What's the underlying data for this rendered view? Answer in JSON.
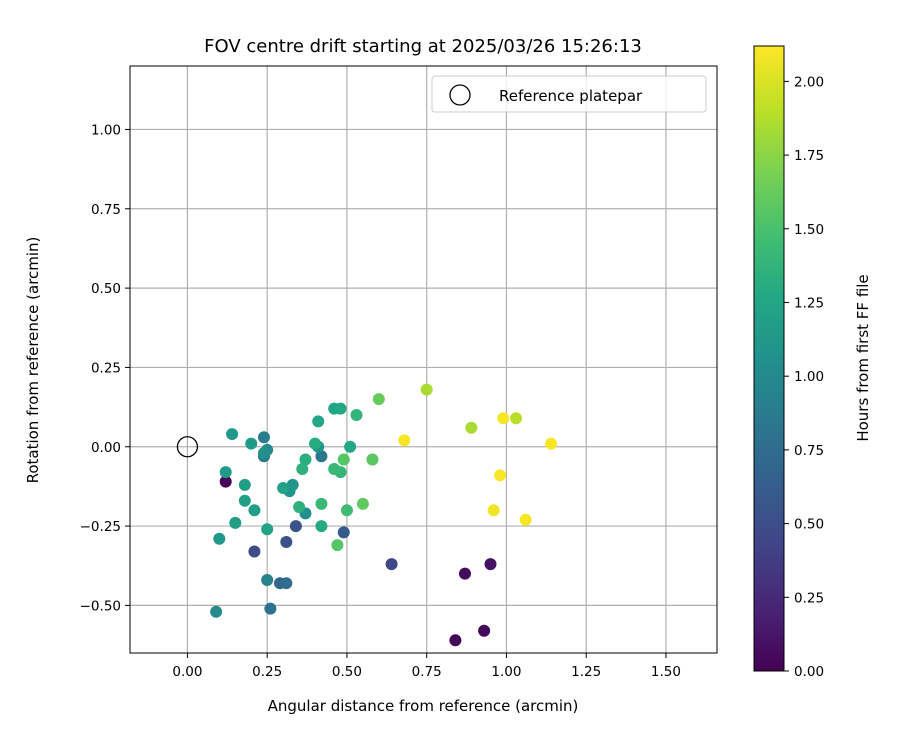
{
  "chart_data": {
    "type": "scatter",
    "title": "FOV centre drift starting at 2025/03/26 15:26:13",
    "xlabel": "Angular distance from reference (arcmin)",
    "ylabel": "Rotation from reference (arcmin)",
    "xlim": [
      -0.18,
      1.66
    ],
    "ylim": [
      -0.65,
      1.2
    ],
    "xticks": [
      0.0,
      0.25,
      0.5,
      0.75,
      1.0,
      1.25,
      1.5
    ],
    "xtick_labels": [
      "0.00",
      "0.25",
      "0.50",
      "0.75",
      "1.00",
      "1.25",
      "1.50"
    ],
    "yticks": [
      -0.5,
      -0.25,
      0.0,
      0.25,
      0.5,
      0.75,
      1.0
    ],
    "ytick_labels": [
      "−0.50",
      "−0.25",
      "0.00",
      "0.25",
      "0.50",
      "0.75",
      "1.00"
    ],
    "grid": true,
    "legend": {
      "position": "top-right",
      "label": "Reference platepar"
    },
    "reference_point": {
      "x": 0.0,
      "y": 0.0
    },
    "colorbar": {
      "label": "Hours from first FF file",
      "colormap": "viridis",
      "range": [
        0.0,
        2.12
      ],
      "ticks": [
        0.0,
        0.25,
        0.5,
        0.75,
        1.0,
        1.25,
        1.5,
        1.75,
        2.0
      ],
      "tick_labels": [
        "0.00",
        "0.25",
        "0.50",
        "0.75",
        "1.00",
        "1.25",
        "1.50",
        "1.75",
        "2.00"
      ]
    },
    "points": [
      {
        "x": 0.12,
        "y": -0.11,
        "c": 0.03
      },
      {
        "x": 0.84,
        "y": -0.61,
        "c": 0.02
      },
      {
        "x": 0.93,
        "y": -0.58,
        "c": 0.05
      },
      {
        "x": 0.87,
        "y": -0.4,
        "c": 0.07
      },
      {
        "x": 0.95,
        "y": -0.37,
        "c": 0.1
      },
      {
        "x": 0.64,
        "y": -0.37,
        "c": 0.45
      },
      {
        "x": 0.21,
        "y": -0.33,
        "c": 0.5
      },
      {
        "x": 0.31,
        "y": -0.3,
        "c": 0.52
      },
      {
        "x": 0.34,
        "y": -0.25,
        "c": 0.55
      },
      {
        "x": 0.49,
        "y": -0.27,
        "c": 0.6
      },
      {
        "x": 0.29,
        "y": -0.43,
        "c": 0.7
      },
      {
        "x": 0.31,
        "y": -0.43,
        "c": 0.75
      },
      {
        "x": 0.26,
        "y": -0.51,
        "c": 0.8
      },
      {
        "x": 0.24,
        "y": -0.03,
        "c": 0.85
      },
      {
        "x": 0.42,
        "y": -0.03,
        "c": 0.85
      },
      {
        "x": 0.24,
        "y": 0.03,
        "c": 0.9
      },
      {
        "x": 0.25,
        "y": -0.42,
        "c": 0.95
      },
      {
        "x": 0.25,
        "y": -0.01,
        "c": 1.0
      },
      {
        "x": 0.09,
        "y": -0.52,
        "c": 1.0
      },
      {
        "x": 0.24,
        "y": -0.02,
        "c": 1.05
      },
      {
        "x": 0.37,
        "y": -0.21,
        "c": 1.05
      },
      {
        "x": 0.32,
        "y": -0.14,
        "c": 1.1
      },
      {
        "x": 0.33,
        "y": -0.12,
        "c": 1.1
      },
      {
        "x": 0.41,
        "y": 0.0,
        "c": 1.1
      },
      {
        "x": 0.1,
        "y": -0.29,
        "c": 1.12
      },
      {
        "x": 0.14,
        "y": 0.04,
        "c": 1.12
      },
      {
        "x": 0.12,
        "y": -0.08,
        "c": 1.15
      },
      {
        "x": 0.2,
        "y": 0.01,
        "c": 1.15
      },
      {
        "x": 0.15,
        "y": -0.24,
        "c": 1.18
      },
      {
        "x": 0.18,
        "y": -0.12,
        "c": 1.18
      },
      {
        "x": 0.18,
        "y": -0.17,
        "c": 1.2
      },
      {
        "x": 0.21,
        "y": -0.2,
        "c": 1.2
      },
      {
        "x": 0.25,
        "y": -0.26,
        "c": 1.22
      },
      {
        "x": 0.3,
        "y": -0.13,
        "c": 1.22
      },
      {
        "x": 0.41,
        "y": 0.08,
        "c": 1.25
      },
      {
        "x": 0.46,
        "y": 0.12,
        "c": 1.25
      },
      {
        "x": 0.48,
        "y": 0.12,
        "c": 1.27
      },
      {
        "x": 0.51,
        "y": 0.0,
        "c": 1.27
      },
      {
        "x": 0.4,
        "y": 0.01,
        "c": 1.3
      },
      {
        "x": 0.42,
        "y": -0.25,
        "c": 1.3
      },
      {
        "x": 0.37,
        "y": -0.04,
        "c": 1.32
      },
      {
        "x": 0.36,
        "y": -0.07,
        "c": 1.35
      },
      {
        "x": 0.35,
        "y": -0.19,
        "c": 1.35
      },
      {
        "x": 0.53,
        "y": 0.1,
        "c": 1.38
      },
      {
        "x": 0.46,
        "y": -0.07,
        "c": 1.4
      },
      {
        "x": 0.48,
        "y": -0.08,
        "c": 1.4
      },
      {
        "x": 0.42,
        "y": -0.18,
        "c": 1.42
      },
      {
        "x": 0.5,
        "y": -0.2,
        "c": 1.45
      },
      {
        "x": 0.49,
        "y": -0.04,
        "c": 1.55
      },
      {
        "x": 0.47,
        "y": -0.31,
        "c": 1.55
      },
      {
        "x": 0.58,
        "y": -0.04,
        "c": 1.58
      },
      {
        "x": 0.55,
        "y": -0.18,
        "c": 1.6
      },
      {
        "x": 0.6,
        "y": 0.15,
        "c": 1.62
      },
      {
        "x": 0.75,
        "y": 0.18,
        "c": 1.85
      },
      {
        "x": 0.89,
        "y": 0.06,
        "c": 1.85
      },
      {
        "x": 1.03,
        "y": 0.09,
        "c": 1.9
      },
      {
        "x": 0.68,
        "y": 0.02,
        "c": 2.1
      },
      {
        "x": 0.99,
        "y": 0.09,
        "c": 2.1
      },
      {
        "x": 1.14,
        "y": 0.01,
        "c": 2.1
      },
      {
        "x": 0.98,
        "y": -0.09,
        "c": 2.1
      },
      {
        "x": 0.96,
        "y": -0.2,
        "c": 2.08
      },
      {
        "x": 1.06,
        "y": -0.23,
        "c": 2.1
      }
    ]
  }
}
